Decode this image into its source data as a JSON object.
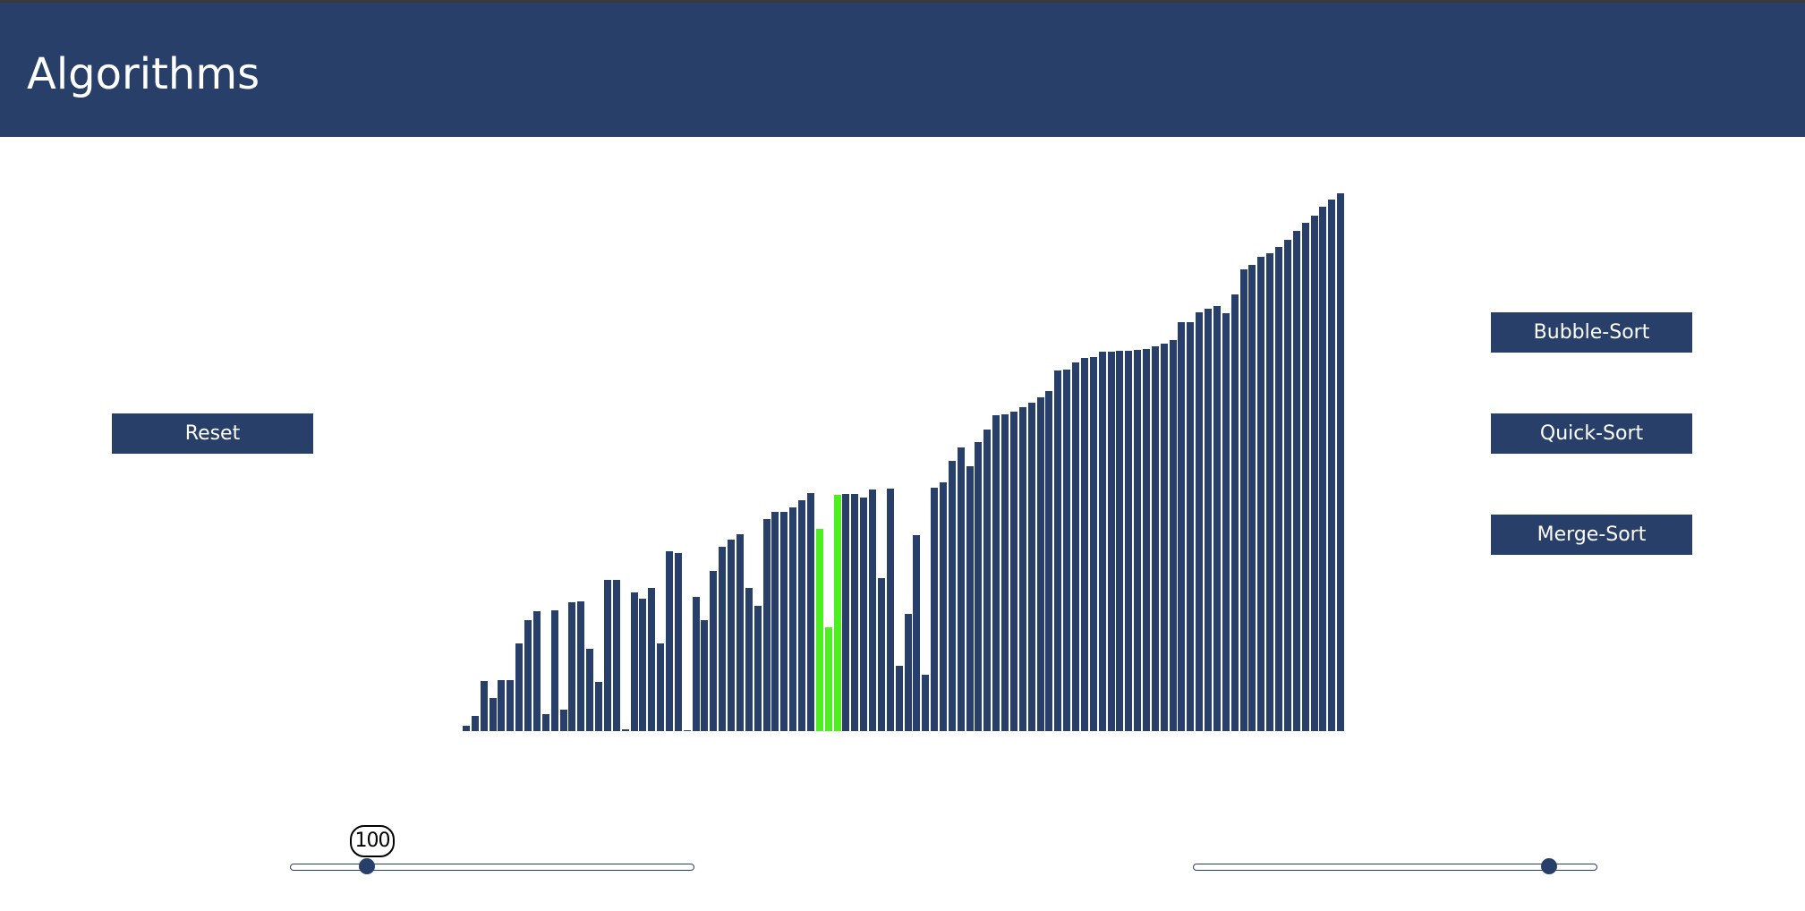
{
  "header": {
    "title": "Algorithms",
    "background": "#273f69"
  },
  "controls": {
    "reset_label": "Reset",
    "bubble_sort_label": "Bubble-Sort",
    "quick_sort_label": "Quick-Sort",
    "merge_sort_label": "Merge-Sort"
  },
  "sliders": {
    "array_size": {
      "value_label": "100",
      "fraction": 0.19
    },
    "speed": {
      "fraction": 0.885
    }
  },
  "colors": {
    "bar": "#273f69",
    "highlight": "#4cf01e",
    "accent": "#273f69"
  },
  "chart_data": {
    "type": "bar",
    "values": [
      8,
      25,
      81,
      54,
      83,
      83,
      143,
      180,
      195,
      27,
      197,
      35,
      210,
      211,
      134,
      80,
      246,
      246,
      3,
      226,
      215,
      232,
      142,
      293,
      290,
      1,
      218,
      181,
      260,
      300,
      311,
      320,
      232,
      204,
      344,
      357,
      357,
      363,
      375,
      387,
      329,
      168,
      384,
      385,
      386,
      380,
      392,
      248,
      394,
      106,
      190,
      319,
      91,
      395,
      404,
      439,
      461,
      431,
      470,
      490,
      514,
      515,
      519,
      527,
      533,
      543,
      553,
      586,
      588,
      599,
      606,
      608,
      616,
      617,
      618,
      618,
      619,
      621,
      626,
      629,
      636,
      664,
      665,
      681,
      686,
      691,
      679,
      710,
      750,
      757,
      771,
      776,
      787,
      799,
      813,
      826,
      837,
      852,
      864,
      874
    ],
    "highlighted": [
      40,
      41,
      42
    ],
    "ylim": [
      0,
      874
    ]
  }
}
